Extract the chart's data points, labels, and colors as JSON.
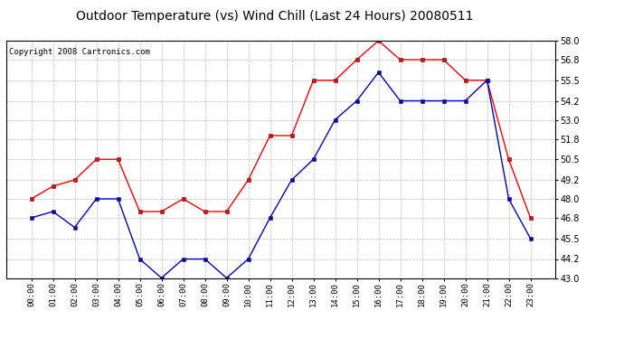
{
  "title": "Outdoor Temperature (vs) Wind Chill (Last 24 Hours) 20080511",
  "copyright": "Copyright 2008 Cartronics.com",
  "x_labels": [
    "00:00",
    "01:00",
    "02:00",
    "03:00",
    "04:00",
    "05:00",
    "06:00",
    "07:00",
    "08:00",
    "09:00",
    "10:00",
    "11:00",
    "12:00",
    "13:00",
    "14:00",
    "15:00",
    "16:00",
    "17:00",
    "18:00",
    "19:00",
    "20:00",
    "21:00",
    "22:00",
    "23:00"
  ],
  "temp_red": [
    48.0,
    48.8,
    49.2,
    50.5,
    50.5,
    47.2,
    47.2,
    48.0,
    47.2,
    47.2,
    49.2,
    52.0,
    52.0,
    55.5,
    55.5,
    56.8,
    58.0,
    56.8,
    56.8,
    56.8,
    55.5,
    55.5,
    50.5,
    46.8
  ],
  "wind_chill_blue": [
    46.8,
    47.2,
    46.2,
    48.0,
    48.0,
    44.2,
    43.0,
    44.2,
    44.2,
    43.0,
    44.2,
    46.8,
    49.2,
    50.5,
    53.0,
    54.2,
    56.0,
    54.2,
    54.2,
    54.2,
    54.2,
    55.5,
    48.0,
    45.5
  ],
  "ylim": [
    43.0,
    58.0
  ],
  "yticks": [
    43.0,
    44.2,
    45.5,
    46.8,
    48.0,
    49.2,
    50.5,
    51.8,
    53.0,
    54.2,
    55.5,
    56.8,
    58.0
  ],
  "red_color": "#ff0000",
  "blue_color": "#0000cc",
  "background_color": "#ffffff",
  "grid_color": "#bbbbbb",
  "title_fontsize": 10,
  "copyright_fontsize": 6.5
}
